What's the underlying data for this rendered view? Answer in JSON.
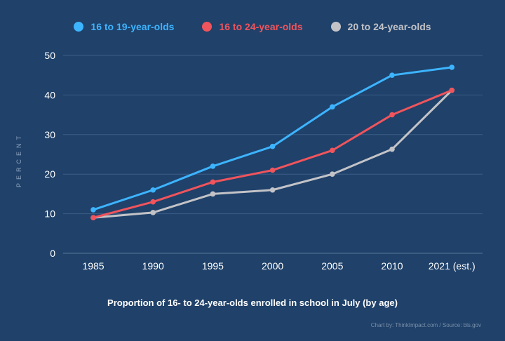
{
  "chart_data": {
    "type": "line",
    "categories": [
      "1985",
      "1990",
      "1995",
      "2000",
      "2005",
      "2010",
      "2021 (est.)"
    ],
    "series": [
      {
        "name": "16 to 19-year-olds",
        "color": "#3db4ff",
        "values": [
          11,
          16,
          22,
          27,
          37,
          45,
          47
        ]
      },
      {
        "name": "16 to 24-year-olds",
        "color": "#f0545c",
        "values": [
          9,
          13,
          18,
          21,
          26,
          35,
          41.2
        ]
      },
      {
        "name": "20 to 24-year-olds",
        "color": "#c3c3c7",
        "values": [
          9,
          10.3,
          15,
          16,
          20,
          26.3,
          41.2
        ]
      }
    ],
    "title": "Proportion of 16- to 24-year-olds enrolled in school in July (by age)",
    "xlabel": "",
    "ylabel": "PERCENT",
    "ylim": [
      0,
      50
    ],
    "yticks": [
      0,
      10,
      20,
      30,
      40,
      50
    ],
    "grid": true,
    "legend_position": "top-center",
    "source": "Chart by: ThinkImpact.com / Source: bls.gov"
  }
}
